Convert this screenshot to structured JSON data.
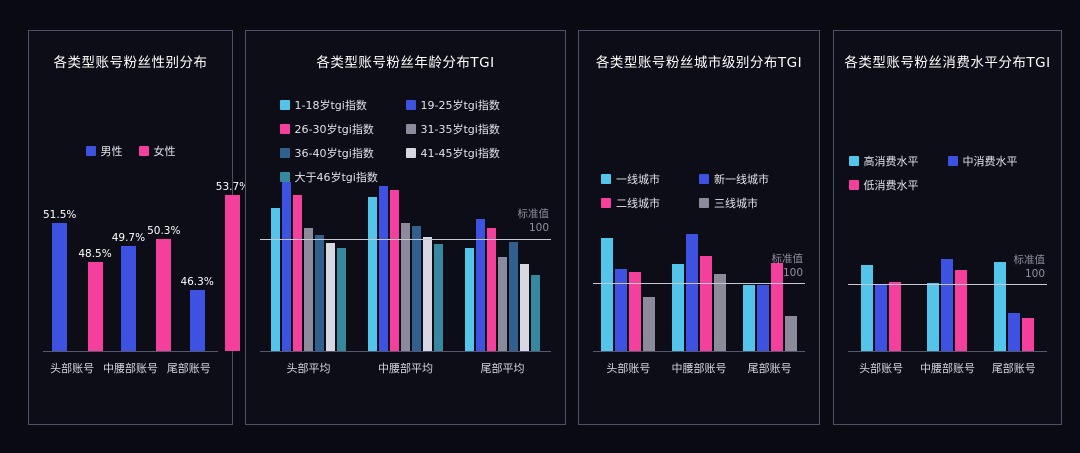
{
  "colors": {
    "background": "#0a0a13",
    "panel_border": "#50506a",
    "cyan": "#54c5ea",
    "blue": "#3d52e0",
    "pink": "#f53f9d",
    "gray": "#8b8b9b",
    "steel_blue": "#31608f",
    "light_gray": "#d8d8e2",
    "teal": "#35889e",
    "refline": "#c7c7d2"
  },
  "chart_data": [
    {
      "type": "bar",
      "title": "各类型账号粉丝性别分布",
      "categories": [
        "头部账号",
        "中腰部账号",
        "尾部账号"
      ],
      "series": [
        {
          "name": "男性",
          "color": "#3d52e0",
          "values": [
            51.5,
            49.7,
            46.3
          ],
          "labels": [
            "51.5%",
            "49.7%",
            "46.3%"
          ]
        },
        {
          "name": "女性",
          "color": "#f53f9d",
          "values": [
            48.5,
            50.3,
            53.7
          ],
          "labels": [
            "48.5%",
            "50.3%",
            "53.7%"
          ]
        }
      ],
      "unit": "%",
      "ylim": [
        41.5,
        55.5
      ],
      "grid": false,
      "legend_position": "top-center"
    },
    {
      "type": "bar",
      "title": "各类型账号粉丝年龄分布TGI",
      "categories": [
        "头部平均",
        "中腰部平均",
        "尾部平均"
      ],
      "series": [
        {
          "name": "1-18岁tgi指数",
          "color": "#54c5ea",
          "values": [
            128,
            138,
            92
          ]
        },
        {
          "name": "19-25岁tgi指数",
          "color": "#3d52e0",
          "values": [
            152,
            148,
            118
          ]
        },
        {
          "name": "26-30岁tgi指数",
          "color": "#f53f9d",
          "values": [
            140,
            144,
            110
          ]
        },
        {
          "name": "31-35岁tgi指数",
          "color": "#8b8b9b",
          "values": [
            110,
            115,
            84
          ]
        },
        {
          "name": "36-40岁tgi指数",
          "color": "#31608f",
          "values": [
            104,
            112,
            98
          ]
        },
        {
          "name": "41-45岁tgi指数",
          "color": "#d8d8e2",
          "values": [
            97,
            102,
            78
          ]
        },
        {
          "name": "大于46岁tgi指数",
          "color": "#35889e",
          "values": [
            92,
            96,
            68
          ]
        }
      ],
      "refline": {
        "value": 100,
        "label": "标准值",
        "sublabel": "100"
      },
      "ylim": [
        0,
        165
      ],
      "grid": false,
      "legend_position": "top-center"
    },
    {
      "type": "bar",
      "title": "各类型账号粉丝城市级别分布TGI",
      "categories": [
        "头部账号",
        "中腰部账号",
        "尾部账号"
      ],
      "series": [
        {
          "name": "一线城市",
          "color": "#54c5ea",
          "values": [
            168,
            130,
            98
          ]
        },
        {
          "name": "新一线城市",
          "color": "#3d52e0",
          "values": [
            122,
            175,
            98
          ]
        },
        {
          "name": "二线城市",
          "color": "#f53f9d",
          "values": [
            118,
            142,
            132
          ]
        },
        {
          "name": "三线城市",
          "color": "#8b8b9b",
          "values": [
            80,
            115,
            52
          ]
        }
      ],
      "refline": {
        "value": 100,
        "label": "标准值",
        "sublabel": "100"
      },
      "ylim": [
        0,
        185
      ],
      "grid": false,
      "legend_position": "top-center"
    },
    {
      "type": "bar",
      "title": "各类型账号粉丝消费水平分布TGI",
      "categories": [
        "头部账号",
        "中腰部账号",
        "尾部账号"
      ],
      "series": [
        {
          "name": "高消费水平",
          "color": "#54c5ea",
          "values": [
            130,
            103,
            135
          ]
        },
        {
          "name": "中消费水平",
          "color": "#3d52e0",
          "values": [
            102,
            140,
            58
          ]
        },
        {
          "name": "低消费水平",
          "color": "#f53f9d",
          "values": [
            105,
            122,
            50
          ]
        }
      ],
      "refline": {
        "value": 100,
        "label": "标准值",
        "sublabel": "100"
      },
      "ylim": [
        0,
        150
      ],
      "grid": false,
      "legend_position": "top-center"
    }
  ]
}
